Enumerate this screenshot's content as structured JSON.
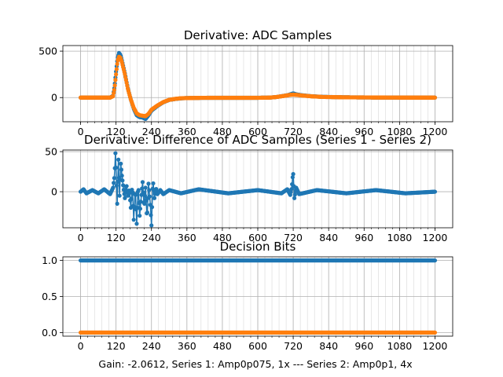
{
  "figure": {
    "caption": "Gain: -2.0612, Series 1: Amp0p075, 1x --- Series 2: Amp0p1, 4x"
  },
  "colors": {
    "series1": "#1f77b4",
    "series2": "#ff7f0e",
    "grid": "#b0b0b0"
  },
  "chart_data": [
    {
      "type": "line",
      "title": "Derivative: ADC Samples",
      "xlabel": "",
      "ylabel": "",
      "xlim": [
        -60,
        1260
      ],
      "ylim": [
        -260,
        560
      ],
      "xticks": [
        0,
        120,
        240,
        360,
        480,
        600,
        720,
        840,
        960,
        1080,
        1200
      ],
      "xtick_labels": [
        "0",
        "120",
        "240",
        "360",
        "480",
        "600",
        "720",
        "840",
        "960",
        "1080",
        "1200"
      ],
      "yticks": [
        0,
        500
      ],
      "ytick_labels": [
        "0",
        "500"
      ],
      "grid": true,
      "minor_x_step": 24,
      "markers": true,
      "series": [
        {
          "color": "#1f77b4",
          "x": [
            0,
            60,
            100,
            110,
            115,
            120,
            125,
            130,
            135,
            140,
            150,
            160,
            170,
            180,
            190,
            200,
            210,
            220,
            230,
            240,
            260,
            280,
            300,
            320,
            340,
            360,
            400,
            450,
            500,
            550,
            600,
            640,
            660,
            680,
            700,
            710,
            720,
            730,
            750,
            780,
            820,
            900,
            1000,
            1100,
            1200
          ],
          "y": [
            0,
            0,
            0,
            20,
            120,
            280,
            420,
            480,
            460,
            400,
            260,
            100,
            -20,
            -120,
            -190,
            -210,
            -215,
            -230,
            -190,
            -140,
            -90,
            -50,
            -25,
            -15,
            -8,
            -5,
            -3,
            -2,
            -2,
            -2,
            -2,
            0,
            5,
            15,
            25,
            35,
            45,
            35,
            25,
            15,
            8,
            3,
            1,
            0,
            0
          ]
        },
        {
          "color": "#ff7f0e",
          "x": [
            0,
            60,
            100,
            110,
            115,
            120,
            125,
            130,
            135,
            140,
            150,
            160,
            170,
            180,
            190,
            200,
            210,
            220,
            230,
            240,
            260,
            280,
            300,
            320,
            340,
            360,
            400,
            450,
            500,
            550,
            600,
            640,
            660,
            680,
            700,
            710,
            720,
            730,
            750,
            780,
            820,
            900,
            1000,
            1100,
            1200
          ],
          "y": [
            0,
            0,
            0,
            15,
            100,
            250,
            390,
            440,
            430,
            380,
            250,
            95,
            -20,
            -110,
            -170,
            -190,
            -195,
            -200,
            -175,
            -130,
            -85,
            -48,
            -24,
            -14,
            -7,
            -5,
            -3,
            -2,
            -2,
            -2,
            -2,
            0,
            5,
            14,
            24,
            30,
            32,
            30,
            22,
            14,
            7,
            3,
            1,
            0,
            0
          ]
        }
      ]
    },
    {
      "type": "line",
      "title": "Derivative: Difference of ADC Samples (Series 1 - Series 2)",
      "xlabel": "",
      "ylabel": "",
      "xlim": [
        -60,
        1260
      ],
      "ylim": [
        -45,
        52
      ],
      "xticks": [
        0,
        120,
        240,
        360,
        480,
        600,
        720,
        840,
        960,
        1080,
        1200
      ],
      "xtick_labels": [
        "0",
        "120",
        "240",
        "360",
        "480",
        "600",
        "720",
        "840",
        "960",
        "1080",
        "1200"
      ],
      "yticks": [
        0,
        50
      ],
      "ytick_labels": [
        "0",
        "50"
      ],
      "grid": true,
      "minor_x_step": 24,
      "markers": true,
      "series": [
        {
          "color": "#1f77b4",
          "x": [
            0,
            10,
            20,
            40,
            60,
            80,
            100,
            110,
            115,
            118,
            120,
            124,
            128,
            132,
            136,
            140,
            145,
            150,
            155,
            160,
            165,
            170,
            175,
            180,
            185,
            190,
            195,
            200,
            205,
            210,
            215,
            220,
            225,
            230,
            235,
            240,
            245,
            250,
            255,
            260,
            270,
            280,
            300,
            340,
            400,
            500,
            600,
            680,
            700,
            710,
            715,
            718,
            720,
            724,
            730,
            740,
            800,
            900,
            1000,
            1100,
            1200
          ],
          "y": [
            0,
            3,
            -2,
            2,
            -2,
            3,
            -3,
            5,
            20,
            48,
            30,
            -15,
            40,
            -5,
            35,
            20,
            5,
            -8,
            10,
            -5,
            3,
            -20,
            8,
            -35,
            5,
            -40,
            10,
            -30,
            -8,
            12,
            -20,
            5,
            -35,
            10,
            -10,
            -42,
            15,
            -8,
            5,
            -3,
            2,
            -3,
            2,
            -2,
            3,
            -2,
            2,
            -2,
            3,
            -4,
            5,
            18,
            22,
            -8,
            5,
            -3,
            2,
            -2,
            2,
            -2,
            0
          ]
        }
      ]
    },
    {
      "type": "scatter",
      "title": "Decision Bits",
      "xlabel": "Gain: -2.0612, Series 1: Amp0p075, 1x --- Series 2: Amp0p1, 4x",
      "ylabel": "",
      "xlim": [
        -60,
        1260
      ],
      "ylim": [
        -0.05,
        1.05
      ],
      "xticks": [
        0,
        120,
        240,
        360,
        480,
        600,
        720,
        840,
        960,
        1080,
        1200
      ],
      "xtick_labels": [
        "0",
        "120",
        "240",
        "360",
        "480",
        "600",
        "720",
        "840",
        "960",
        "1080",
        "1200"
      ],
      "yticks": [
        0.0,
        0.5,
        1.0
      ],
      "ytick_labels": [
        "0.0",
        "0.5",
        "1.0"
      ],
      "grid": true,
      "minor_x_step": 24,
      "markers": true,
      "series": [
        {
          "color": "#1f77b4",
          "x_range": [
            0,
            1200
          ],
          "constant_y": 1.0
        },
        {
          "color": "#ff7f0e",
          "x_range": [
            0,
            1200
          ],
          "constant_y": 0.0
        }
      ]
    }
  ]
}
